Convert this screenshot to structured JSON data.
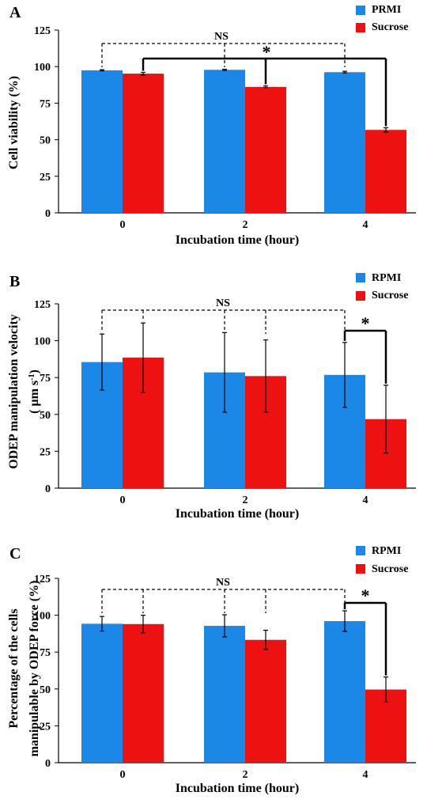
{
  "colors": {
    "series_1": "#1B87E6",
    "series_2": "#EE1111",
    "axis": "#000000"
  },
  "chart_data": [
    {
      "panel": "A",
      "type": "bar",
      "categories": [
        "0",
        "2",
        "4"
      ],
      "series": [
        {
          "name": "PRMI",
          "values": [
            97.5,
            97.8,
            96.2
          ],
          "errors": [
            0.4,
            0.4,
            0.6
          ]
        },
        {
          "name": "Sucrose",
          "values": [
            95.2,
            86.1,
            56.7
          ],
          "errors": [
            0.9,
            0.7,
            1.5
          ]
        }
      ],
      "xlabel": "Incubation time (hour)",
      "ylabel": [
        "Cell viability (%)"
      ],
      "ylim": [
        0,
        125
      ],
      "yticks": [
        0,
        25,
        50,
        75,
        100,
        125
      ],
      "grid": false,
      "legend": "top-right",
      "annotations": {
        "ns": "NS",
        "star": "*"
      }
    },
    {
      "panel": "B",
      "type": "bar",
      "categories": [
        "0",
        "2",
        "4"
      ],
      "series": [
        {
          "name": "RPMI",
          "values": [
            85.5,
            78.5,
            76.8
          ],
          "errors": [
            19,
            27,
            22
          ]
        },
        {
          "name": "Sucrose",
          "values": [
            88.5,
            76.0,
            46.8
          ],
          "errors": [
            23.5,
            24.5,
            23
          ]
        }
      ],
      "xlabel": "Incubation time (hour)",
      "ylabel": [
        "ODEP manipulation velocity",
        "( μm s⁻¹)"
      ],
      "ylim": [
        0,
        125
      ],
      "yticks": [
        0,
        25,
        50,
        75,
        100,
        125
      ],
      "grid": false,
      "legend": "top-right",
      "annotations": {
        "ns": "NS",
        "star": "*"
      }
    },
    {
      "panel": "C",
      "type": "bar",
      "categories": [
        "0",
        "2",
        "4"
      ],
      "series": [
        {
          "name": "RPMI",
          "values": [
            94.2,
            92.8,
            96.0
          ],
          "errors": [
            5,
            7.5,
            7
          ]
        },
        {
          "name": "Sucrose",
          "values": [
            94.0,
            83.3,
            49.6
          ],
          "errors": [
            6,
            6.5,
            8.5
          ]
        }
      ],
      "xlabel": "Incubation time (hour)",
      "ylabel": [
        "Percentage of the cells",
        "manipulable by ODEP force (%)"
      ],
      "ylim": [
        0,
        125
      ],
      "yticks": [
        0,
        25,
        50,
        75,
        100,
        125
      ],
      "grid": false,
      "legend": "top-right",
      "annotations": {
        "ns": "NS",
        "star": "*"
      }
    }
  ]
}
